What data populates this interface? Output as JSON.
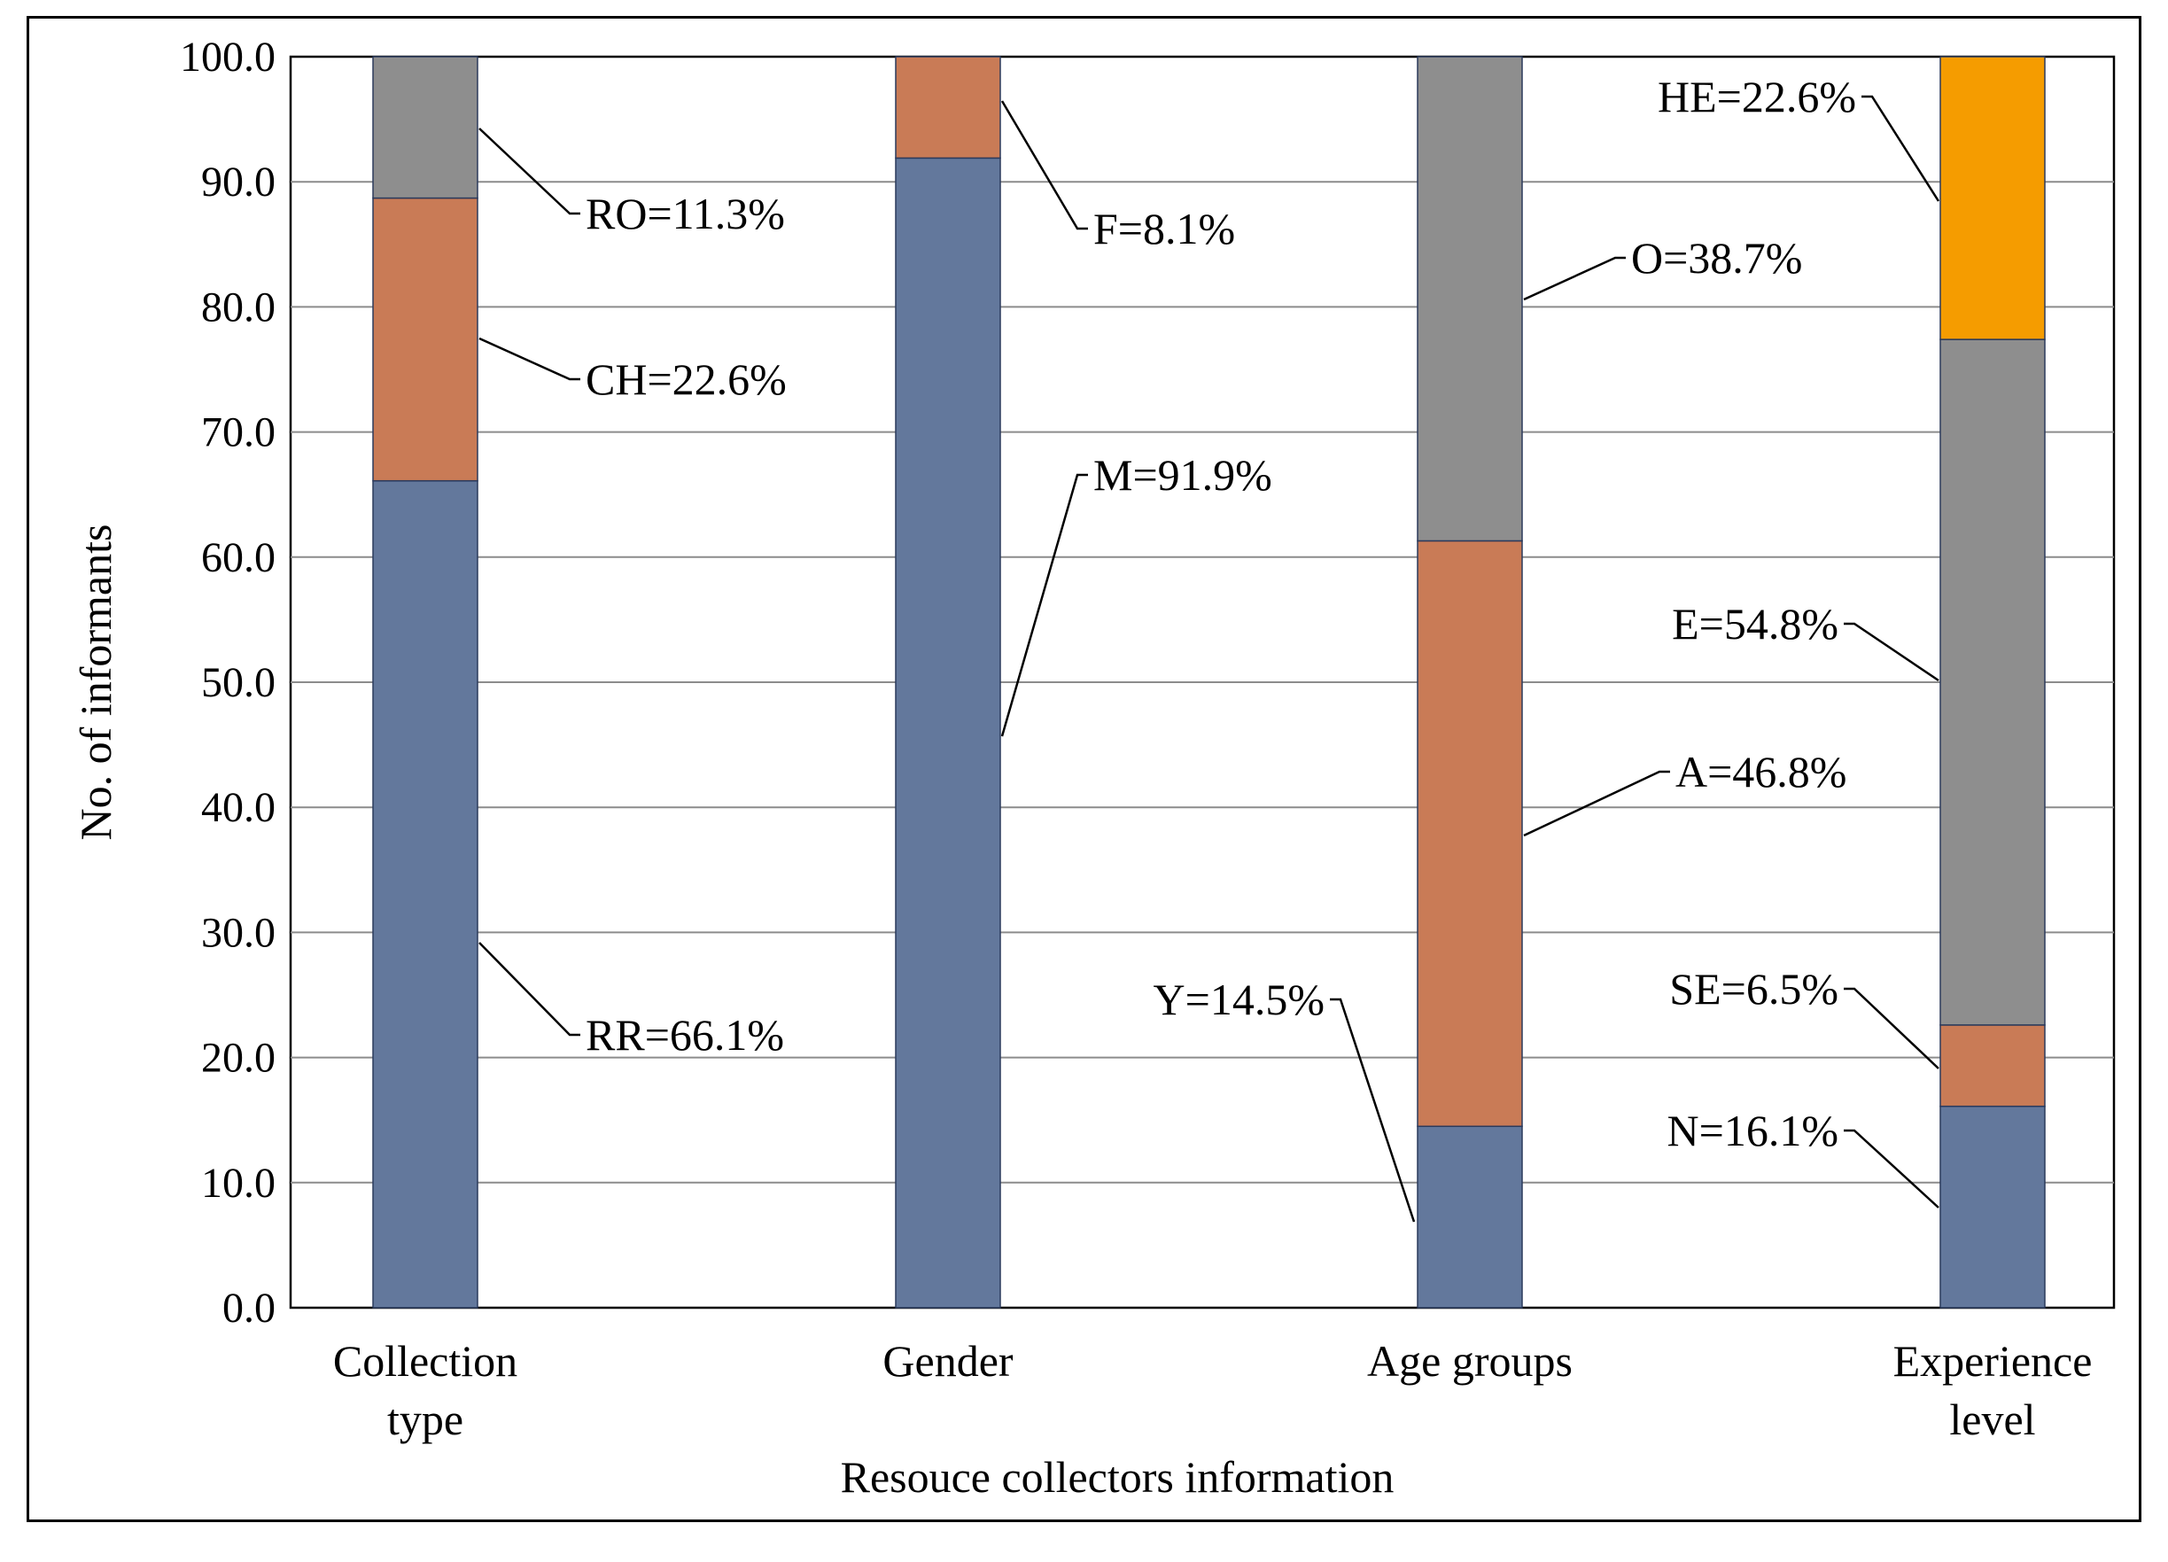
{
  "chart_data": {
    "type": "bar",
    "stacked": true,
    "title": "",
    "xlabel": "Resouce collectors information",
    "ylabel": "No. of informants",
    "ylim": [
      0,
      100
    ],
    "ytick_step": 10,
    "ytick_labels": [
      "0.0",
      "10.0",
      "20.0",
      "30.0",
      "40.0",
      "50.0",
      "60.0",
      "70.0",
      "80.0",
      "90.0",
      "100.0"
    ],
    "grid": true,
    "categories": [
      {
        "line1": "Collection",
        "line2": "type"
      },
      {
        "line1": "Gender",
        "line2": ""
      },
      {
        "line1": "Age groups",
        "line2": ""
      },
      {
        "line1": "Experience",
        "line2": "level"
      }
    ],
    "stacks": [
      [
        {
          "name": "RR",
          "value": 66.1,
          "label": "RR=66.1%",
          "color": "#63789c"
        },
        {
          "name": "CH",
          "value": 22.6,
          "label": "CH=22.6%",
          "color": "#c97b56"
        },
        {
          "name": "RO",
          "value": 11.3,
          "label": "RO=11.3%",
          "color": "#8e8e8e"
        }
      ],
      [
        {
          "name": "M",
          "value": 91.9,
          "label": "M=91.9%",
          "color": "#63789c"
        },
        {
          "name": "F",
          "value": 8.1,
          "label": "F=8.1%",
          "color": "#c97b56"
        }
      ],
      [
        {
          "name": "Y",
          "value": 14.5,
          "label": "Y=14.5%",
          "color": "#63789c"
        },
        {
          "name": "A",
          "value": 46.8,
          "label": "A=46.8%",
          "color": "#c97b56"
        },
        {
          "name": "O",
          "value": 38.7,
          "label": "O=38.7%",
          "color": "#8e8e8e"
        }
      ],
      [
        {
          "name": "N",
          "value": 16.1,
          "label": "N=16.1%",
          "color": "#63789c"
        },
        {
          "name": "SE",
          "value": 6.5,
          "label": "SE=6.5%",
          "color": "#c97b56"
        },
        {
          "name": "E",
          "value": 54.8,
          "label": "E=54.8%",
          "color": "#8e8e8e"
        },
        {
          "name": "HE",
          "value": 22.6,
          "label": "HE=22.6%",
          "color": "#f59c00"
        }
      ]
    ]
  }
}
